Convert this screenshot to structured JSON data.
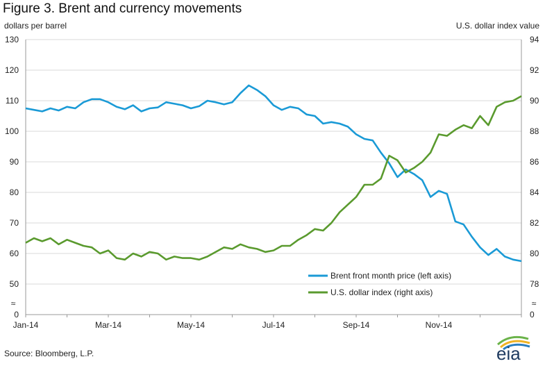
{
  "header": {
    "title": "Figure 3. Brent and currency movements",
    "left_unit": "dollars per barrel",
    "right_unit": "U.S. dollar index value"
  },
  "footer": {
    "source": "Source: Bloomberg, L.P."
  },
  "logo": {
    "text": "eia"
  },
  "chart_data": {
    "type": "line",
    "title": "Figure 3. Brent and currency movements",
    "xlabel": "",
    "x_ticks": [
      "Jan-14",
      "Mar-14",
      "May-14",
      "Jul-14",
      "Sep-14",
      "Nov-14"
    ],
    "left_axis": {
      "label": "dollars per barrel",
      "ylim": [
        0,
        130
      ],
      "visible_range": [
        50,
        130
      ],
      "ticks": [
        0,
        50,
        60,
        70,
        80,
        90,
        100,
        110,
        120,
        130
      ],
      "axis_break": true
    },
    "right_axis": {
      "label": "U.S. dollar index value",
      "ylim": [
        0,
        94
      ],
      "visible_range": [
        78,
        94
      ],
      "ticks": [
        0,
        78,
        80,
        82,
        84,
        86,
        88,
        90,
        92,
        94
      ],
      "axis_break": true
    },
    "grid": "horizontal",
    "legend_position": "bottom-right",
    "colors": {
      "brent": "#1a9ad6",
      "usd": "#5a9a2e"
    },
    "series": [
      {
        "name": "Brent front month price (left axis)",
        "axis": "left",
        "x": [
          0,
          0.2,
          0.4,
          0.6,
          0.8,
          1.0,
          1.2,
          1.4,
          1.6,
          1.8,
          2.0,
          2.2,
          2.4,
          2.6,
          2.8,
          3.0,
          3.2,
          3.4,
          3.6,
          3.8,
          4.0,
          4.2,
          4.4,
          4.6,
          4.8,
          5.0,
          5.2,
          5.4,
          5.6,
          5.8,
          6.0,
          6.2,
          6.4,
          6.6,
          6.8,
          7.0,
          7.2,
          7.4,
          7.6,
          7.8,
          8.0,
          8.2,
          8.4,
          8.6,
          8.8,
          9.0,
          9.2,
          9.4,
          9.6,
          9.8,
          10.0,
          10.2,
          10.4,
          10.6,
          10.8,
          11.0,
          11.2,
          11.4,
          11.6,
          11.8,
          12.0
        ],
        "values": [
          107.5,
          107,
          106.5,
          107.5,
          106.8,
          108,
          107.5,
          109.5,
          110.5,
          110.5,
          109.5,
          108,
          107.2,
          108.5,
          106.5,
          107.5,
          107.8,
          109.5,
          109,
          108.5,
          107.5,
          108.2,
          110,
          109.5,
          108.8,
          109.5,
          112.5,
          115,
          113.5,
          111.5,
          108.5,
          107,
          108,
          107.5,
          105.5,
          105,
          102.5,
          103,
          102.5,
          101.5,
          99,
          97.5,
          97,
          93,
          89.5,
          85,
          87.5,
          86,
          84,
          78.5,
          80.5,
          79.5,
          70.5,
          69.5,
          65.5,
          62,
          59.5,
          61.5,
          59,
          58,
          57.5
        ]
      },
      {
        "name": "U.S. dollar index (right axis)",
        "axis": "right",
        "x": [
          0,
          0.2,
          0.4,
          0.6,
          0.8,
          1.0,
          1.2,
          1.4,
          1.6,
          1.8,
          2.0,
          2.2,
          2.4,
          2.6,
          2.8,
          3.0,
          3.2,
          3.4,
          3.6,
          3.8,
          4.0,
          4.2,
          4.4,
          4.6,
          4.8,
          5.0,
          5.2,
          5.4,
          5.6,
          5.8,
          6.0,
          6.2,
          6.4,
          6.6,
          6.8,
          7.0,
          7.2,
          7.4,
          7.6,
          7.8,
          8.0,
          8.2,
          8.4,
          8.6,
          8.8,
          9.0,
          9.2,
          9.4,
          9.6,
          9.8,
          10.0,
          10.2,
          10.4,
          10.6,
          10.8,
          11.0,
          11.2,
          11.4,
          11.6,
          11.8,
          12.0
        ],
        "values": [
          80.7,
          81,
          80.8,
          81,
          80.6,
          80.9,
          80.7,
          80.5,
          80.4,
          80,
          80.2,
          79.7,
          79.6,
          80,
          79.8,
          80.1,
          80,
          79.6,
          79.8,
          79.7,
          79.7,
          79.6,
          79.8,
          80.1,
          80.4,
          80.3,
          80.6,
          80.4,
          80.3,
          80.1,
          80.2,
          80.5,
          80.5,
          80.9,
          81.2,
          81.6,
          81.5,
          82,
          82.7,
          83.2,
          83.7,
          84.5,
          84.5,
          84.9,
          86.4,
          86.1,
          85.3,
          85.6,
          86,
          86.6,
          87.8,
          87.7,
          88.1,
          88.4,
          88.2,
          89,
          88.4,
          89.6,
          89.9,
          90,
          90.3
        ]
      }
    ]
  }
}
